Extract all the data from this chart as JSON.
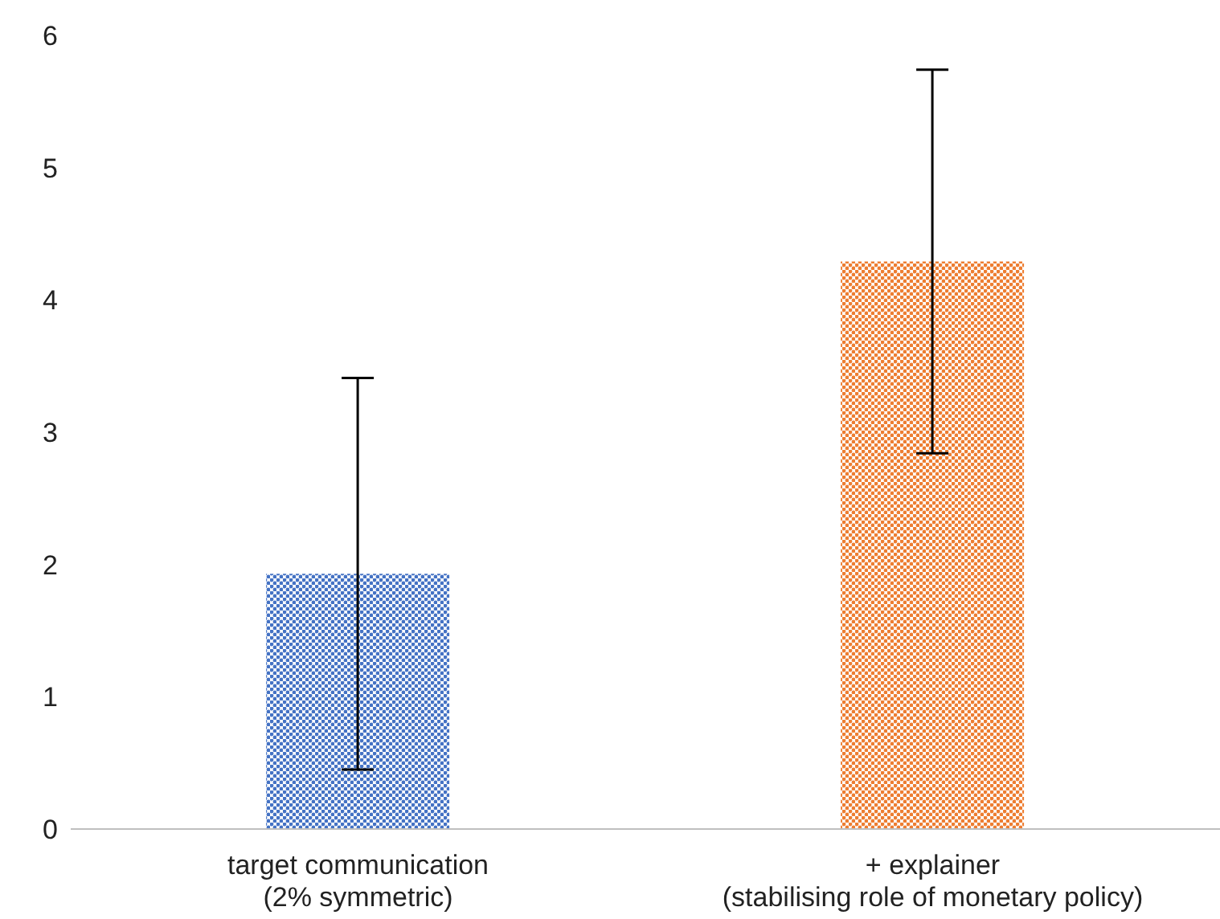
{
  "chart_data": {
    "type": "bar",
    "categories": [
      "target communication\n(2% symmetric)",
      "+ explainer\n(stabilising role of monetary policy)"
    ],
    "values": [
      1.93,
      4.29
    ],
    "colors": [
      "#4472c4",
      "#ed7d31"
    ],
    "errors": [
      1.48,
      1.45
    ],
    "ylim": [
      0,
      6
    ],
    "yticks": [
      0,
      1,
      2,
      3,
      4,
      5,
      6
    ],
    "grid": false,
    "legend": false
  }
}
